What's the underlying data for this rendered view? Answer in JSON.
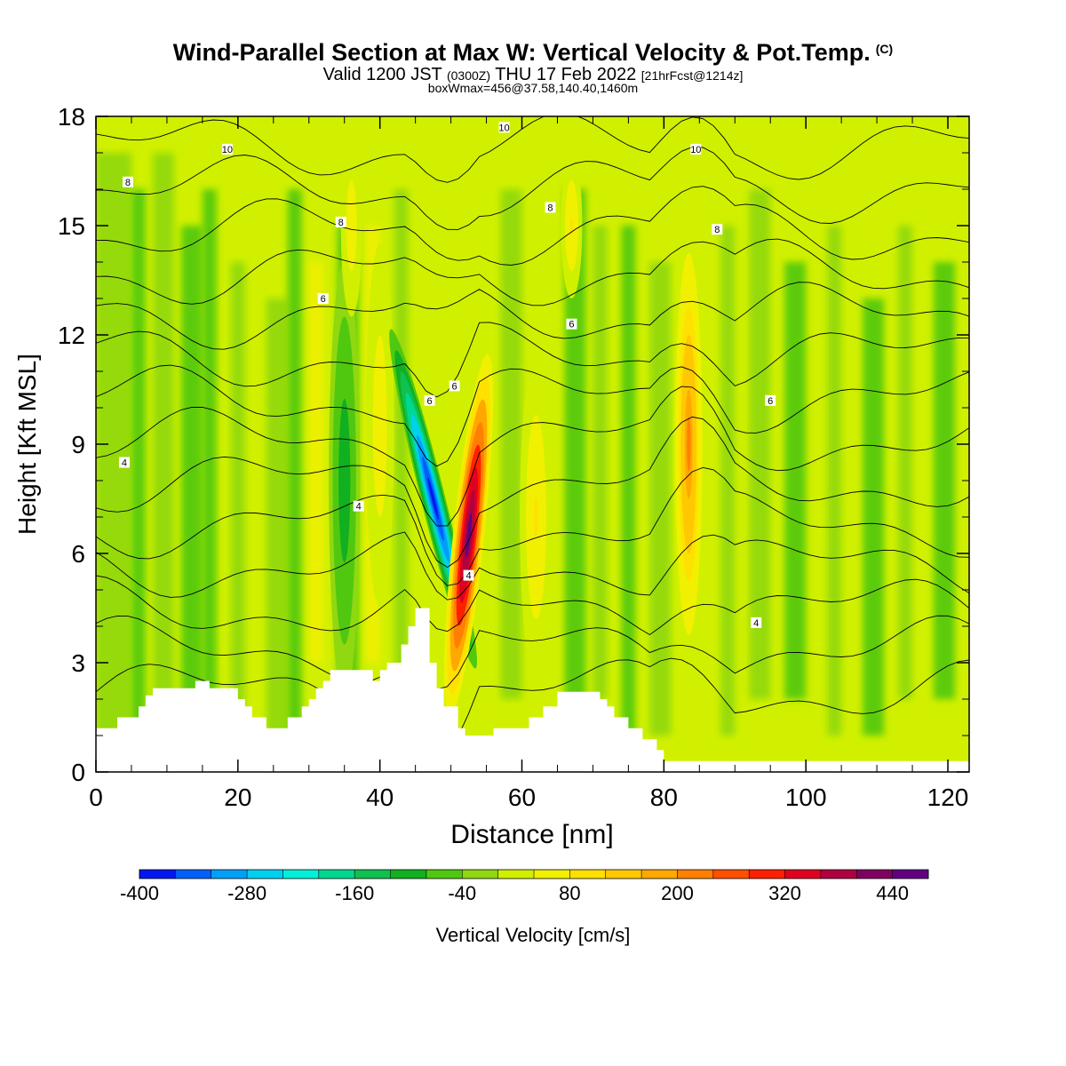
{
  "title": {
    "main": "Wind-Parallel Section at Max W: Vertical Velocity & Pot.Temp.",
    "copyright": "(C)",
    "valid_prefix": "Valid 1200 JST",
    "utc": "(0300Z)",
    "valid_date": "THU 17 Feb 2022",
    "forecast": "[21hrFcst@1214z]",
    "box_info": "boxWmax=456@37.58,140.40,1460m"
  },
  "chart_data": {
    "type": "heatmap",
    "xlabel": "Distance [nm]",
    "ylabel": "Height [Kft MSL]",
    "xlim": [
      0,
      123
    ],
    "ylim": [
      0,
      18
    ],
    "x_ticks": [
      0,
      20,
      40,
      60,
      80,
      100,
      120
    ],
    "y_ticks": [
      0,
      3,
      6,
      9,
      12,
      15,
      18
    ],
    "colorbar": {
      "label": "Vertical Velocity [cm/s]",
      "tick_labels": [
        -400,
        -280,
        -160,
        -40,
        80,
        200,
        320,
        440
      ],
      "levels": [
        -400,
        -360,
        -320,
        -280,
        -240,
        -200,
        -160,
        -120,
        -80,
        -40,
        0,
        40,
        80,
        120,
        160,
        200,
        240,
        280,
        320,
        360,
        400,
        440,
        480
      ],
      "colors": [
        "#0018f0",
        "#0060f8",
        "#00a0f8",
        "#00d0f0",
        "#00f0d8",
        "#00d890",
        "#10c050",
        "#10b020",
        "#50c810",
        "#90d810",
        "#d0f000",
        "#f0f000",
        "#ffe000",
        "#ffc800",
        "#ffa800",
        "#ff8000",
        "#ff5000",
        "#ff2000",
        "#e00020",
        "#b00040",
        "#800060",
        "#600080"
      ]
    },
    "vertical_velocity_features": [
      {
        "kind": "downdraft",
        "x_range": [
          45,
          50
        ],
        "z_range": [
          2.5,
          12
        ],
        "peak": -400
      },
      {
        "kind": "updraft",
        "x_range": [
          50,
          55
        ],
        "z_range": [
          2.5,
          11
        ],
        "peak": 456
      },
      {
        "kind": "updraft",
        "x_range": [
          60,
          65
        ],
        "z_range": [
          3,
          11
        ],
        "peak": 80
      },
      {
        "kind": "updraft",
        "x_range": [
          81,
          86
        ],
        "z_range": [
          4,
          15
        ],
        "peak": 200
      },
      {
        "kind": "downdraft",
        "x_range": [
          33,
          37
        ],
        "z_range": [
          2,
          14
        ],
        "peak": -120
      },
      {
        "kind": "updraft",
        "x_range": [
          38,
          42
        ],
        "z_range": [
          3,
          14
        ],
        "peak": 80
      }
    ],
    "theta_contour_labels": [
      {
        "text": "10",
        "x": 18.5,
        "y": 17.1
      },
      {
        "text": "10",
        "x": 57.5,
        "y": 17.7
      },
      {
        "text": "10",
        "x": 84.5,
        "y": 17.1
      },
      {
        "text": "8",
        "x": 4.5,
        "y": 16.2
      },
      {
        "text": "8",
        "x": 34.5,
        "y": 15.1
      },
      {
        "text": "8",
        "x": 64,
        "y": 15.5
      },
      {
        "text": "8",
        "x": 87.5,
        "y": 14.9
      },
      {
        "text": "6",
        "x": 32,
        "y": 13.0
      },
      {
        "text": "6",
        "x": 67,
        "y": 12.3
      },
      {
        "text": "6",
        "x": 47,
        "y": 10.2
      },
      {
        "text": "6",
        "x": 50.5,
        "y": 10.6
      },
      {
        "text": "6",
        "x": 95,
        "y": 10.2
      },
      {
        "text": "4",
        "x": 4,
        "y": 8.5
      },
      {
        "text": "4",
        "x": 37,
        "y": 7.3
      },
      {
        "text": "4",
        "x": 52.5,
        "y": 5.4
      },
      {
        "text": "4",
        "x": 93,
        "y": 4.1
      }
    ],
    "terrain_kft": [
      [
        0,
        1.2
      ],
      [
        3,
        1.2
      ],
      [
        3,
        1.5
      ],
      [
        6,
        1.5
      ],
      [
        6,
        1.8
      ],
      [
        7,
        1.8
      ],
      [
        7,
        2.1
      ],
      [
        8,
        2.1
      ],
      [
        8,
        2.3
      ],
      [
        14,
        2.3
      ],
      [
        14,
        2.5
      ],
      [
        16,
        2.5
      ],
      [
        16,
        2.3
      ],
      [
        20,
        2.3
      ],
      [
        20,
        2.0
      ],
      [
        21,
        2.0
      ],
      [
        21,
        1.8
      ],
      [
        22,
        1.8
      ],
      [
        22,
        1.5
      ],
      [
        24,
        1.5
      ],
      [
        24,
        1.2
      ],
      [
        27,
        1.2
      ],
      [
        27,
        1.5
      ],
      [
        29,
        1.5
      ],
      [
        29,
        1.8
      ],
      [
        30,
        1.8
      ],
      [
        30,
        2.0
      ],
      [
        31,
        2.0
      ],
      [
        31,
        2.3
      ],
      [
        32,
        2.3
      ],
      [
        32,
        2.5
      ],
      [
        33,
        2.5
      ],
      [
        33,
        2.8
      ],
      [
        39,
        2.8
      ],
      [
        39,
        2.5
      ],
      [
        40,
        2.5
      ],
      [
        40,
        2.8
      ],
      [
        41,
        2.8
      ],
      [
        41,
        3.0
      ],
      [
        43,
        3.0
      ],
      [
        43,
        3.5
      ],
      [
        44,
        3.5
      ],
      [
        44,
        4.0
      ],
      [
        45,
        4.0
      ],
      [
        45,
        4.5
      ],
      [
        47,
        4.5
      ],
      [
        47,
        3.0
      ],
      [
        48,
        3.0
      ],
      [
        48,
        2.3
      ],
      [
        49,
        2.3
      ],
      [
        49,
        1.8
      ],
      [
        51,
        1.8
      ],
      [
        51,
        1.2
      ],
      [
        52,
        1.2
      ],
      [
        52,
        1.0
      ],
      [
        56,
        1.0
      ],
      [
        56,
        1.2
      ],
      [
        61,
        1.2
      ],
      [
        61,
        1.5
      ],
      [
        63,
        1.5
      ],
      [
        63,
        1.8
      ],
      [
        65,
        1.8
      ],
      [
        65,
        2.2
      ],
      [
        71,
        2.2
      ],
      [
        71,
        2.0
      ],
      [
        72,
        2.0
      ],
      [
        72,
        1.8
      ],
      [
        73,
        1.8
      ],
      [
        73,
        1.5
      ],
      [
        75,
        1.5
      ],
      [
        75,
        1.2
      ],
      [
        77,
        1.2
      ],
      [
        77,
        0.9
      ],
      [
        79,
        0.9
      ],
      [
        79,
        0.6
      ],
      [
        80,
        0.6
      ],
      [
        80,
        0.3
      ],
      [
        123,
        0.3
      ],
      [
        123,
        0
      ]
    ]
  }
}
